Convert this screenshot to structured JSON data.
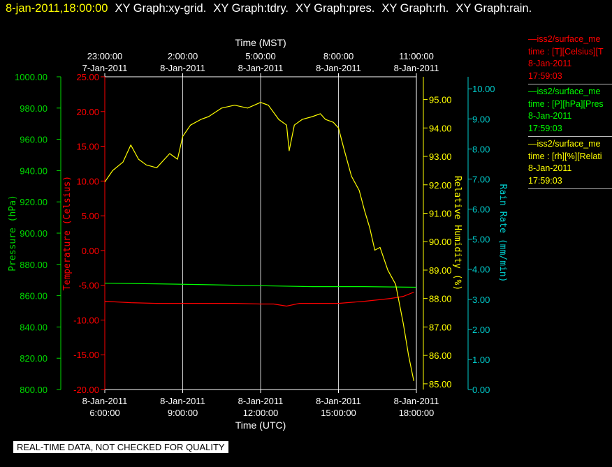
{
  "header": {
    "timestamp": "8-jan-2011,18:00:00",
    "graphs": [
      "XY Graph:xy-grid.",
      "XY Graph:tdry.",
      "XY Graph:pres.",
      "XY Graph:rh.",
      "XY Graph:rain."
    ]
  },
  "legend": [
    {
      "line": "—iss2/surface_me",
      "units": "time : [T][Celsius][T",
      "date": "8-Jan-2011",
      "time": "17:59:03",
      "color": "#ff0000"
    },
    {
      "line": "—iss2/surface_me",
      "units": "time : [P][hPa][Pres",
      "date": "8-Jan-2011",
      "time": "17:59:03",
      "color": "#00ff00"
    },
    {
      "line": "—iss2/surface_me",
      "units": "time : [rh][%][Relati",
      "date": "8-Jan-2011",
      "time": "17:59:03",
      "color": "#ffff00"
    }
  ],
  "notice": "REAL-TIME DATA, NOT CHECKED FOR QUALITY",
  "chart_data": {
    "type": "line",
    "x_range_utc_hours": [
      6,
      18
    ],
    "xlabel_bottom": "Time (UTC)",
    "xlabel_top": "Time (MST)",
    "x_ticks_bottom": [
      {
        "time": "6:00:00",
        "date": "8-Jan-2011"
      },
      {
        "time": "9:00:00",
        "date": "8-Jan-2011"
      },
      {
        "time": "12:00:00",
        "date": "8-Jan-2011"
      },
      {
        "time": "15:00:00",
        "date": "8-Jan-2011"
      },
      {
        "time": "18:00:00",
        "date": "8-Jan-2011"
      }
    ],
    "x_ticks_top": [
      {
        "time": "23:00:00",
        "date": "7-Jan-2011"
      },
      {
        "time": "2:00:00",
        "date": "8-Jan-2011"
      },
      {
        "time": "5:00:00",
        "date": "8-Jan-2011"
      },
      {
        "time": "8:00:00",
        "date": "8-Jan-2011"
      },
      {
        "time": "11:00:00",
        "date": "8-Jan-2011"
      }
    ],
    "axes": {
      "pressure": {
        "label": "Pressure (hPa)",
        "range": [
          800,
          1000
        ],
        "ticks": [
          "800.00",
          "820.00",
          "840.00",
          "860.00",
          "880.00",
          "900.00",
          "920.00",
          "940.00",
          "960.00",
          "980.00",
          "1000.00"
        ],
        "color": "#00dd00"
      },
      "temperature": {
        "label": "Temperature (Celsius)",
        "range": [
          -20,
          25
        ],
        "ticks": [
          "-20.00",
          "-15.00",
          "-10.00",
          "-5.00",
          "0.00",
          "5.00",
          "10.00",
          "15.00",
          "20.00",
          "25.00"
        ],
        "color": "#ff0000"
      },
      "rh": {
        "label": "Relative Humidity (%)",
        "range": [
          84.8,
          95.8
        ],
        "ticks": [
          "85.00",
          "86.00",
          "87.00",
          "88.00",
          "89.00",
          "90.00",
          "91.00",
          "92.00",
          "93.00",
          "94.00",
          "95.00"
        ],
        "color": "#ffff00"
      },
      "rain": {
        "label": "Rain Rate (mm/min)",
        "range": [
          0,
          10.4
        ],
        "ticks": [
          "0.00",
          "1.00",
          "2.00",
          "3.00",
          "4.00",
          "5.00",
          "6.00",
          "7.00",
          "8.00",
          "9.00",
          "10.00"
        ],
        "color": "#00cccc"
      }
    },
    "series": [
      {
        "name": "T",
        "axis": "temperature",
        "color": "#ff0000",
        "x": [
          6.0,
          7.0,
          8.0,
          9.0,
          10.0,
          11.0,
          12.0,
          12.5,
          13.0,
          13.5,
          14.0,
          15.0,
          16.0,
          16.5,
          17.0,
          17.5,
          17.9
        ],
        "y": [
          -7.3,
          -7.5,
          -7.6,
          -7.6,
          -7.6,
          -7.6,
          -7.7,
          -7.7,
          -8.0,
          -7.6,
          -7.6,
          -7.6,
          -7.3,
          -7.1,
          -6.9,
          -6.6,
          -6.0
        ]
      },
      {
        "name": "P",
        "axis": "pressure",
        "color": "#00ff00",
        "x": [
          6.0,
          8.0,
          10.0,
          12.0,
          14.0,
          16.0,
          18.0
        ],
        "y": [
          868.0,
          867.6,
          867.0,
          866.4,
          865.8,
          865.8,
          865.4
        ]
      },
      {
        "name": "rh",
        "axis": "rh",
        "color": "#ffff00",
        "x": [
          6.0,
          6.3,
          6.7,
          7.0,
          7.3,
          7.6,
          8.0,
          8.5,
          8.8,
          9.0,
          9.3,
          9.7,
          10.0,
          10.5,
          11.0,
          11.5,
          12.0,
          12.3,
          12.7,
          13.0,
          13.1,
          13.3,
          13.6,
          14.0,
          14.3,
          14.5,
          14.8,
          15.0,
          15.2,
          15.5,
          15.8,
          16.0,
          16.2,
          16.4,
          16.6,
          16.9,
          17.2,
          17.5,
          17.7,
          17.9
        ],
        "y": [
          92.1,
          92.5,
          92.8,
          93.4,
          92.9,
          92.7,
          92.6,
          93.1,
          92.9,
          93.7,
          94.1,
          94.3,
          94.4,
          94.7,
          94.8,
          94.7,
          94.9,
          94.8,
          94.3,
          94.1,
          93.2,
          94.1,
          94.3,
          94.4,
          94.5,
          94.3,
          94.2,
          94.0,
          93.3,
          92.3,
          91.8,
          91.1,
          90.5,
          89.7,
          89.8,
          89.0,
          88.5,
          87.1,
          86.0,
          85.1
        ]
      }
    ]
  }
}
